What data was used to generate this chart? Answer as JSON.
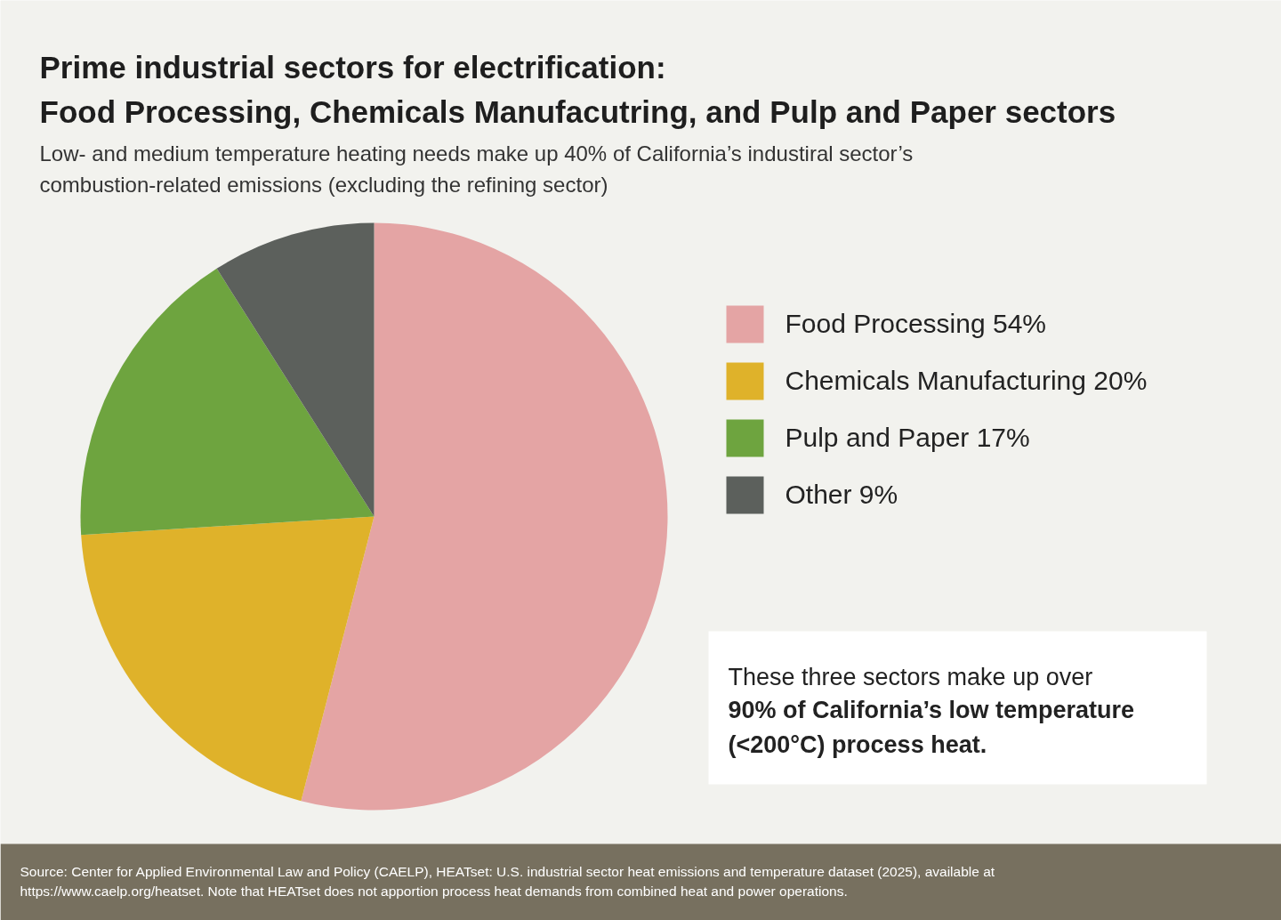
{
  "chart_data": {
    "type": "pie",
    "title": "Prime industrial sectors for electrification:\nFood Processing, Chemicals Manufacutring, and Pulp and Paper sectors",
    "subtitle": "Low- and medium temperature heating needs make up 40% of California’s industiral sector’s\ncombustion-related emissions (excluding the refining sector)",
    "categories": [
      "Food Processing",
      "Chemicals Manufacturing",
      "Pulp and Paper",
      "Other"
    ],
    "values": [
      54,
      20,
      17,
      9
    ],
    "value_labels": [
      "54%",
      "20%",
      "17%",
      "9%"
    ],
    "colors": [
      "#e4a4a4",
      "#dfb22a",
      "#6ea43f",
      "#5c605c"
    ],
    "legend": "right",
    "annotations": [
      "These three sectors make up over",
      "90% of California’s low temperature\n(<200°C) process heat.",
      "Source: Center for Applied Environmental Law and Policy (CAELP), HEATset: U.S. industrial sector heat emissions and temperature dataset (2025), available at\nhttps://www.caelp.org/heatset. Note that HEATset does not apportion process heat demands from combined heat and power operations."
    ]
  }
}
